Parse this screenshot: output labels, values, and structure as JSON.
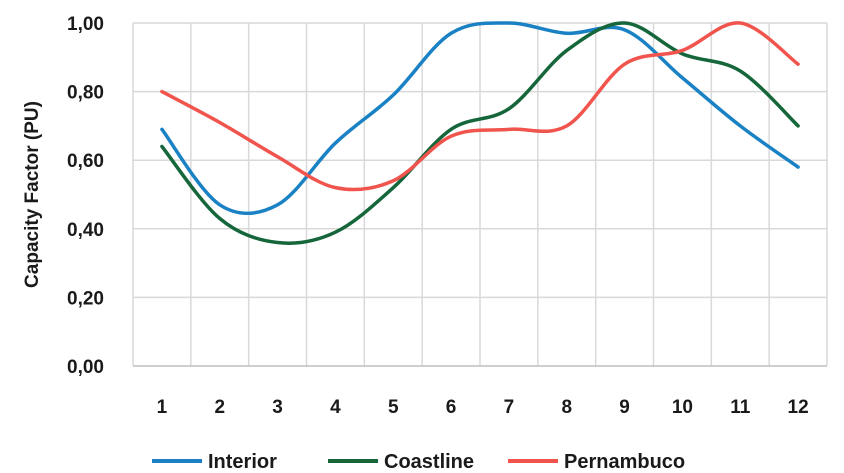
{
  "chart_data": {
    "type": "line",
    "x": [
      1,
      2,
      3,
      4,
      5,
      6,
      7,
      8,
      9,
      10,
      11,
      12
    ],
    "x_tick_labels": [
      "1",
      "2",
      "3",
      "4",
      "5",
      "6",
      "7",
      "8",
      "9",
      "10",
      "11",
      "12"
    ],
    "series": [
      {
        "name": "Interior",
        "color": "#1a82c4",
        "values": [
          0.69,
          0.47,
          0.47,
          0.65,
          0.79,
          0.97,
          1.0,
          0.97,
          0.98,
          0.84,
          0.7,
          0.58
        ]
      },
      {
        "name": "Coastline",
        "color": "#15663a",
        "values": [
          0.64,
          0.43,
          0.36,
          0.39,
          0.52,
          0.69,
          0.75,
          0.92,
          1.0,
          0.91,
          0.86,
          0.7
        ]
      },
      {
        "name": "Pernambuco",
        "color": "#f0544d",
        "values": [
          0.8,
          0.71,
          0.61,
          0.52,
          0.54,
          0.67,
          0.69,
          0.7,
          0.88,
          0.92,
          1.0,
          0.88
        ]
      }
    ],
    "ylabel": "Capacity Factor (PU)",
    "xlabel": "",
    "ylim": [
      0,
      1
    ],
    "y_ticks": [
      0,
      0.2,
      0.4,
      0.6,
      0.8,
      1.0
    ],
    "y_tick_labels": [
      "0,00",
      "0,20",
      "0,40",
      "0,60",
      "0,80",
      "1,00"
    ],
    "grid": "vertical and horizontal",
    "legend_position": "bottom"
  }
}
